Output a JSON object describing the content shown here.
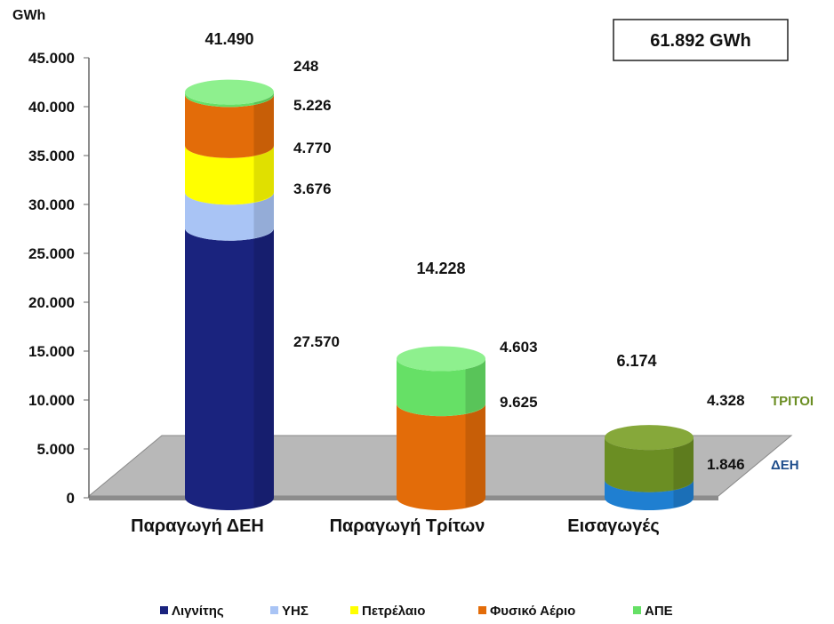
{
  "chart_data": {
    "type": "bar",
    "title": "",
    "ylabel": "GWh",
    "ylim": [
      0,
      45000
    ],
    "yticks": [
      "0",
      "5.000",
      "10.000",
      "15.000",
      "20.000",
      "25.000",
      "30.000",
      "35.000",
      "40.000",
      "45.000"
    ],
    "total_box": "61.892 GWh",
    "categories": [
      "Παραγωγή ΔΕΗ",
      "Παραγωγή Τρίτων",
      "Εισαγωγές"
    ],
    "legend": [
      {
        "name": "Λιγνίτης",
        "color": "#1a237e"
      },
      {
        "name": "ΥΗΣ",
        "color": "#a9c4f5"
      },
      {
        "name": "Πετρέλαιο",
        "color": "#ffff00"
      },
      {
        "name": "Φυσικό Αέριο",
        "color": "#e36c09"
      },
      {
        "name": "ΑΠΕ",
        "color": "#66e066"
      }
    ],
    "bars": [
      {
        "category": "Παραγωγή ΔΕΗ",
        "total_label": "41.490",
        "segments": [
          {
            "series": "Λιγνίτης",
            "value": 27570,
            "label": "27.570",
            "color": "#1a237e",
            "top_color": "#283593"
          },
          {
            "series": "ΥΗΣ",
            "value": 3676,
            "label": "3.676",
            "color": "#a9c4f5",
            "top_color": "#c5d8fa"
          },
          {
            "series": "Πετρέλαιο",
            "value": 4770,
            "label": "4.770",
            "color": "#ffff00",
            "top_color": "#ffff66"
          },
          {
            "series": "Φυσικό Αέριο",
            "value": 5226,
            "label": "5.226",
            "color": "#e36c09",
            "top_color": "#f08a2f"
          },
          {
            "series": "ΑΠΕ",
            "value": 248,
            "label": "248",
            "color": "#66e066",
            "top_color": "#8ef08e"
          }
        ]
      },
      {
        "category": "Παραγωγή Τρίτων",
        "total_label": "14.228",
        "segments": [
          {
            "series": "Φυσικό Αέριο",
            "value": 9625,
            "label": "9.625",
            "color": "#e36c09",
            "top_color": "#f08a2f"
          },
          {
            "series": "ΑΠΕ",
            "value": 4603,
            "label": "4.603",
            "color": "#66e066",
            "top_color": "#8ef08e"
          }
        ]
      },
      {
        "category": "Εισαγωγές",
        "total_label": "6.174",
        "segments": [
          {
            "series": "ΔΕΗ",
            "value": 1846,
            "label": "1.846",
            "tag": "ΔΕΗ",
            "tag_color": "#1f4e8c",
            "color": "#1f7fd1",
            "top_color": "#4fa3e6"
          },
          {
            "series": "ΤΡΙΤΟΙ",
            "value": 4328,
            "label": "4.328",
            "tag": "ΤΡΙΤΟΙ",
            "tag_color": "#6b8e23",
            "color": "#6b8e23",
            "top_color": "#86a83a"
          }
        ]
      }
    ]
  }
}
